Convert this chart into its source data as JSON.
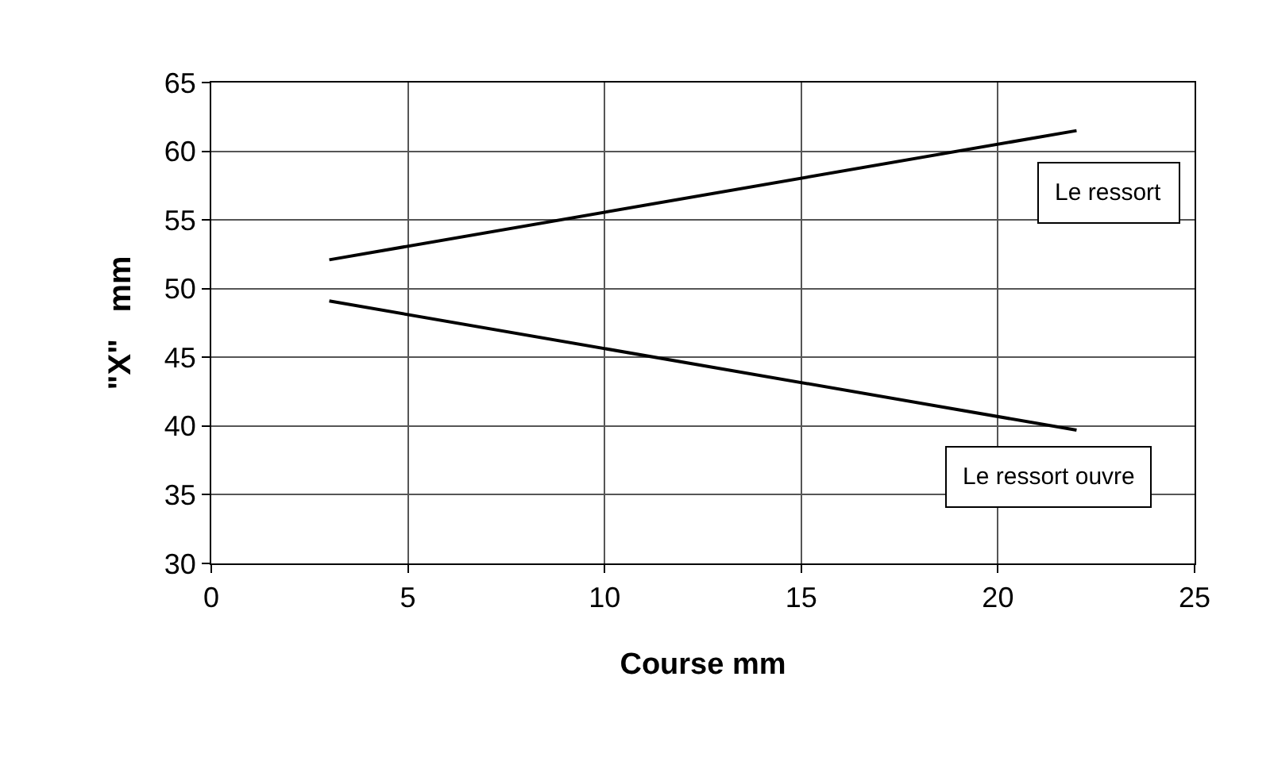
{
  "chart_data": {
    "type": "line",
    "xlabel": "Course mm",
    "ylabel": "\"X\"   mm",
    "x": [
      3,
      22
    ],
    "series": [
      {
        "name": "Le ressort",
        "color": "#000000",
        "values": [
          52.1,
          61.5
        ]
      },
      {
        "name": "Le ressort ouvre",
        "color": "#000000",
        "values": [
          49.1,
          39.7
        ]
      }
    ],
    "xlim": [
      0,
      25
    ],
    "xticks": [
      0,
      5,
      10,
      15,
      20,
      25
    ],
    "ylim": [
      30,
      65
    ],
    "yticks": [
      30,
      35,
      40,
      45,
      50,
      55,
      60,
      65
    ],
    "grid": true,
    "legend": false,
    "marker": "none",
    "line_style": "solid"
  }
}
